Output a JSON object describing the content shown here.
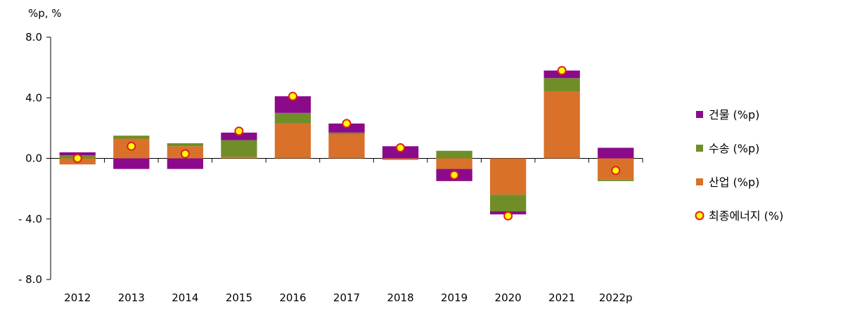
{
  "chart_data": {
    "type": "bar",
    "stacked": true,
    "unit_label": "%p, %",
    "categories": [
      "2012",
      "2013",
      "2014",
      "2015",
      "2016",
      "2017",
      "2018",
      "2019",
      "2020",
      "2021",
      "2022p"
    ],
    "ylim": [
      -8.0,
      8.0
    ],
    "yticks": [
      "8.0",
      "4.0",
      "0.0",
      "- 4.0",
      "- 8.0"
    ],
    "ytick_values": [
      8,
      4,
      0,
      -4,
      -8
    ],
    "series": [
      {
        "name": "산업 (%p)",
        "color": "#D9712B",
        "kind": "bar",
        "values": [
          -0.4,
          1.3,
          0.8,
          0.1,
          2.3,
          1.6,
          -0.1,
          -0.7,
          -2.4,
          4.4,
          -1.4
        ]
      },
      {
        "name": "수송 (%p)",
        "color": "#6F8E28",
        "kind": "bar",
        "values": [
          0.2,
          0.2,
          0.2,
          1.1,
          0.7,
          0.1,
          0.0,
          0.5,
          -1.1,
          0.9,
          -0.1
        ]
      },
      {
        "name": "건물 (%p)",
        "color": "#8B0A8B",
        "kind": "bar",
        "values": [
          0.2,
          -0.7,
          -0.7,
          0.5,
          1.1,
          0.6,
          0.8,
          -0.8,
          -0.2,
          0.5,
          0.7
        ]
      },
      {
        "name": "최종에너지 (%)",
        "color": "#FFFF00",
        "edge": "#E0201B",
        "kind": "marker",
        "values": [
          0.0,
          0.8,
          0.3,
          1.8,
          4.1,
          2.3,
          0.7,
          -1.1,
          -3.8,
          5.8,
          -0.8
        ]
      }
    ],
    "legend": {
      "position": "right",
      "order": [
        "건물 (%p)",
        "수송 (%p)",
        "산업 (%p)",
        "최종에너지 (%)"
      ]
    },
    "grid": false
  }
}
